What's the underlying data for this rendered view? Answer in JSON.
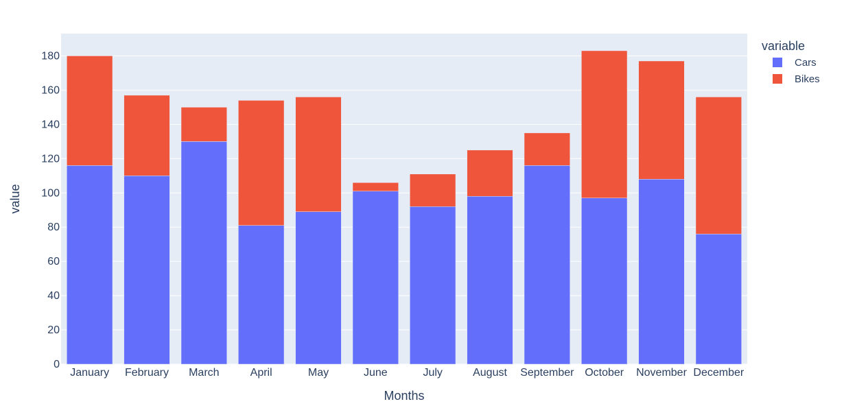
{
  "chart_data": {
    "type": "bar",
    "barmode": "stack",
    "categories": [
      "January",
      "February",
      "March",
      "April",
      "May",
      "June",
      "July",
      "August",
      "September",
      "October",
      "November",
      "December"
    ],
    "series": [
      {
        "name": "Cars",
        "values": [
          116,
          110,
          130,
          81,
          89,
          101,
          92,
          98,
          116,
          97,
          108,
          76
        ]
      },
      {
        "name": "Bikes",
        "values": [
          64,
          47,
          20,
          73,
          67,
          5,
          19,
          27,
          19,
          86,
          69,
          80
        ]
      }
    ],
    "xlabel": "Months",
    "ylabel": "value",
    "ylim": [
      0,
      193
    ],
    "yticks": [
      0,
      20,
      40,
      60,
      80,
      100,
      120,
      140,
      160,
      180
    ],
    "legend_title": "variable",
    "legend_position": "top-right",
    "grid": true
  },
  "colors": {
    "Cars": "#636efa",
    "Bikes": "#ef553b",
    "plot_background": "#e5ecf6",
    "gridline": "#ffffff",
    "text": "#2a3f5f"
  }
}
